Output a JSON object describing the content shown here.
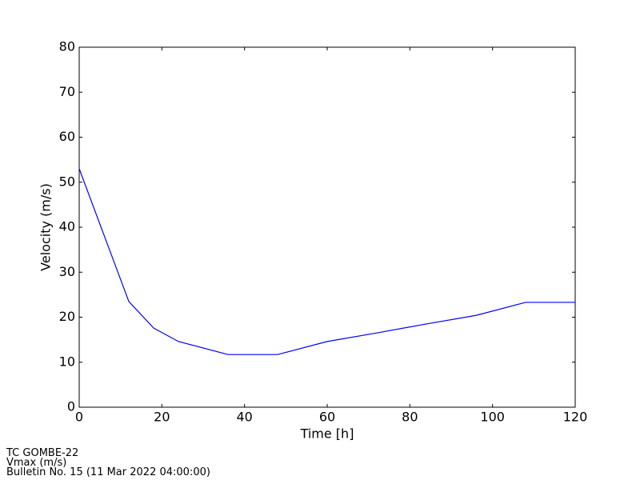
{
  "chart_data": {
    "type": "line",
    "x": [
      0,
      12,
      18,
      24,
      36,
      48,
      60,
      72,
      84,
      96,
      108,
      120
    ],
    "series": [
      {
        "color": "#0000ff",
        "values": [
          53.0,
          23.5,
          17.6,
          14.6,
          11.7,
          11.7,
          14.6,
          16.5,
          18.5,
          20.4,
          23.3,
          23.3
        ]
      }
    ],
    "xlabel": "Time [h]",
    "ylabel": "Velocity (m/s)",
    "xlim": [
      0,
      120
    ],
    "xticks": [
      0,
      20,
      40,
      60,
      80,
      100,
      120
    ],
    "ylim": [
      0,
      80
    ],
    "yticks": [
      0,
      10,
      20,
      30,
      40,
      50,
      60,
      70,
      80
    ],
    "grid": false
  },
  "footer": {
    "lines": [
      "TC GOMBE-22",
      "Vmax (m/s)",
      "Bulletin No. 15 (11 Mar 2022  04:00:00)"
    ]
  }
}
